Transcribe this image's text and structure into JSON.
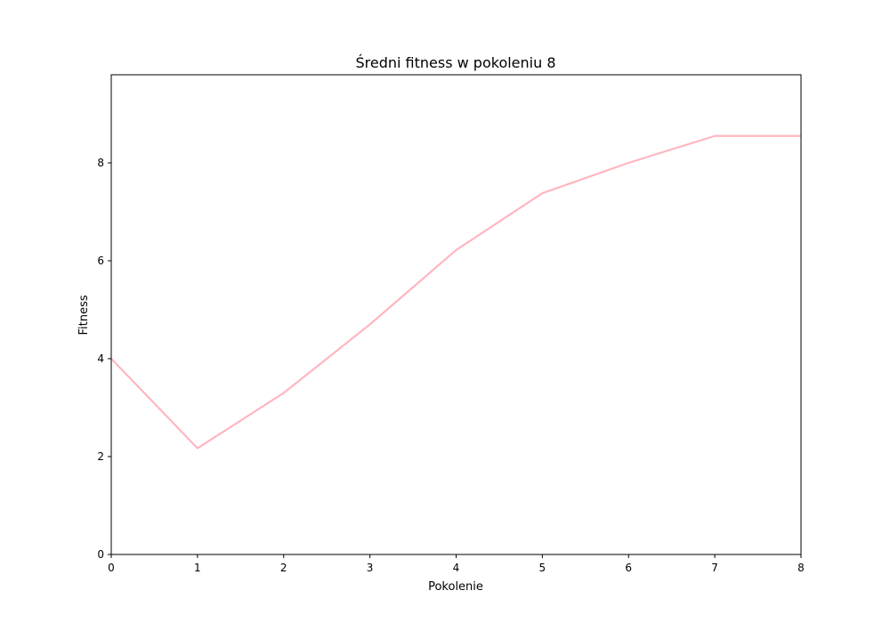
{
  "chart_data": {
    "type": "line",
    "title": "Średni fitness w pokoleniu 8",
    "xlabel": "Pokolenie",
    "ylabel": "Fitness",
    "xlim": [
      0,
      8
    ],
    "ylim": [
      0,
      9.8
    ],
    "xticks": [
      0,
      1,
      2,
      3,
      4,
      5,
      6,
      7,
      8
    ],
    "yticks": [
      0,
      2,
      4,
      6,
      8
    ],
    "grid": false,
    "series": [
      {
        "color": "#ffb6c1",
        "x": [
          0,
          1,
          2,
          3,
          4,
          5,
          6,
          7,
          8
        ],
        "y": [
          4.0,
          2.17,
          3.3,
          4.7,
          6.22,
          7.38,
          8.0,
          8.55,
          8.55
        ]
      }
    ]
  }
}
